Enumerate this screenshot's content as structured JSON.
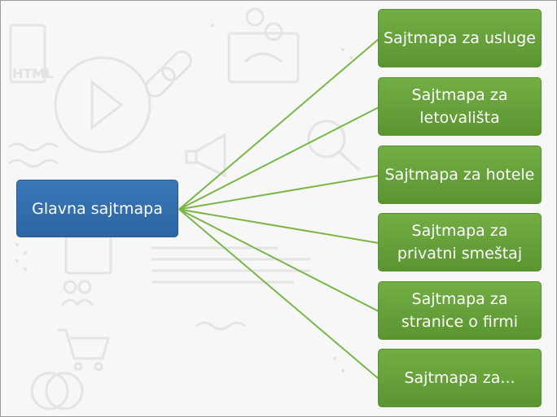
{
  "diagram": {
    "root": {
      "label": "Glavna sajtmapa"
    },
    "children": [
      {
        "label": "Sajtmapa za usluge"
      },
      {
        "label": "Sajtmapa za letovališta"
      },
      {
        "label": "Sajtmapa za hotele"
      },
      {
        "label": "Sajtmapa za privatni smeštaj"
      },
      {
        "label": "Sajtmapa za stranice o firmi"
      },
      {
        "label": "Sajtmapa za..."
      }
    ],
    "colors": {
      "root_fill": "#2e6aa8",
      "child_fill": "#66a13b",
      "connector": "#7ab648",
      "background_icons": "#e6e6e6"
    },
    "background_icons": [
      "html-icon",
      "play-icon",
      "link-icon",
      "dollar-icon",
      "megaphone-icon",
      "magnifier-icon",
      "people-icon",
      "cart-icon",
      "document-lines-icon"
    ]
  }
}
